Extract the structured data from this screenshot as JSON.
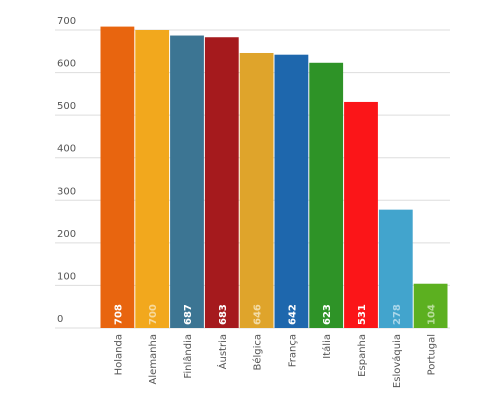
{
  "chart_data": {
    "type": "bar",
    "categories": [
      "Holanda",
      "Alemanha",
      "Finlândia",
      "Áustria",
      "Bélgica",
      "França",
      "Itália",
      "Espanha",
      "Eslováquia",
      "Portugal"
    ],
    "values": [
      708,
      700,
      687,
      683,
      646,
      642,
      623,
      531,
      278,
      104
    ],
    "colors": [
      "#e8650f",
      "#f2a81d",
      "#3c7593",
      "#a51a1d",
      "#dfa42b",
      "#1e67ad",
      "#2e9327",
      "#fb1518",
      "#42a4cd",
      "#5cb020"
    ],
    "label_colors": [
      "#ffffff",
      "#f7d99a",
      "#ffffff",
      "#ffffff",
      "#f3dca8",
      "#ffffff",
      "#ffffff",
      "#ffffff",
      "#a9d6e9",
      "#b7de9a"
    ],
    "ylim": [
      0,
      700
    ],
    "yticks": [
      0,
      100,
      200,
      300,
      400,
      500,
      600,
      700
    ],
    "grid": true
  }
}
